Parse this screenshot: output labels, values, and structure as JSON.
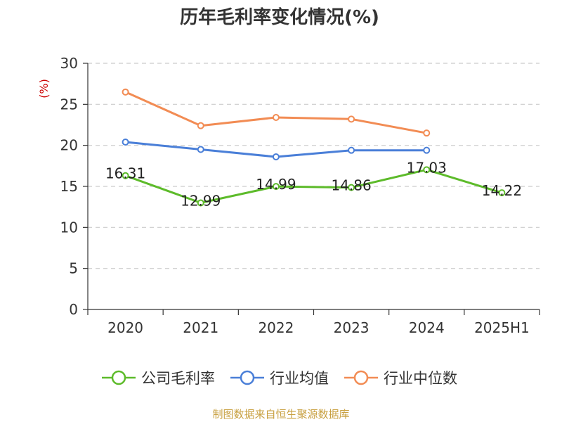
{
  "chart_data": {
    "type": "line",
    "title": "历年毛利率变化情况(%)",
    "ylabel": "(%)",
    "categories": [
      "2020",
      "2021",
      "2022",
      "2023",
      "2024",
      "2025H1"
    ],
    "ylim": [
      0,
      30
    ],
    "yticks": [
      0,
      5,
      10,
      15,
      20,
      25,
      30
    ],
    "grid": true,
    "legend_position": "bottom",
    "series": [
      {
        "name": "公司毛利率",
        "color": "#5dbb2a",
        "values": [
          16.31,
          12.99,
          14.99,
          14.86,
          17.03,
          14.22
        ],
        "labels": [
          "16.31",
          "12.99",
          "14.99",
          "14.86",
          "17.03",
          "14.22"
        ]
      },
      {
        "name": "行业均值",
        "color": "#4a7fd8",
        "values": [
          20.4,
          19.5,
          18.6,
          19.4,
          19.4,
          null
        ]
      },
      {
        "name": "行业中位数",
        "color": "#f28c54",
        "values": [
          26.5,
          22.4,
          23.4,
          23.2,
          21.5,
          null
        ]
      }
    ]
  },
  "footer": {
    "source": "制图数据来自恒生聚源数据库"
  }
}
